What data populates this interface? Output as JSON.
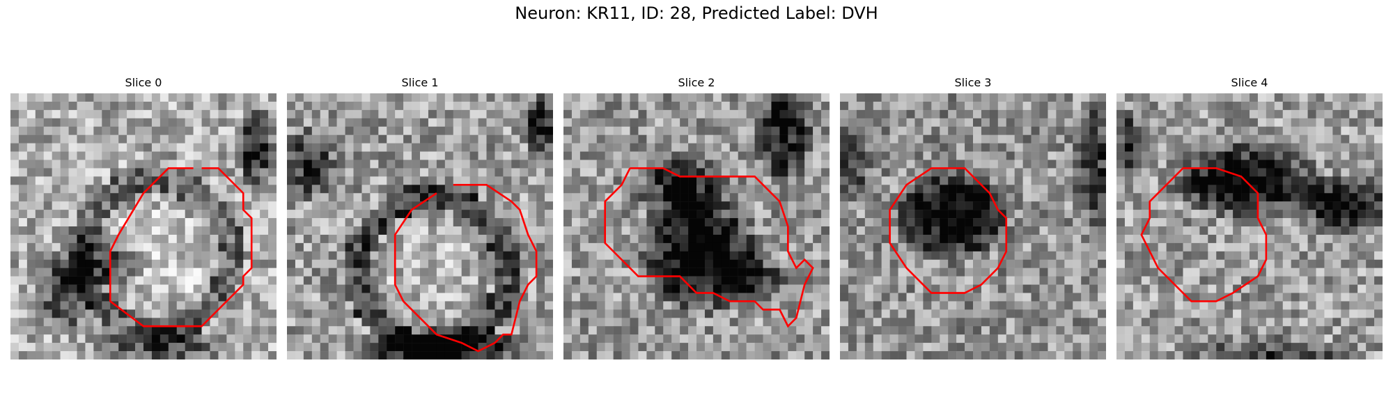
{
  "figure": {
    "title": "Neuron: KR11, ID: 28, Predicted Label: DVH"
  },
  "contour_color": "#ff0000",
  "slices": [
    {
      "title": "Slice 0",
      "contour": [
        [
          23,
          9
        ],
        [
          25,
          9
        ],
        [
          28,
          12
        ],
        [
          28,
          14
        ],
        [
          29,
          15
        ],
        [
          29,
          21
        ],
        [
          28,
          22
        ],
        [
          28,
          23
        ],
        [
          25,
          26
        ],
        [
          23,
          28
        ],
        [
          16,
          28
        ],
        [
          12,
          25
        ],
        [
          12,
          19
        ],
        [
          13,
          17
        ],
        [
          16,
          12
        ],
        [
          19,
          9
        ],
        [
          22,
          9
        ]
      ]
    },
    {
      "title": "Slice 1",
      "contour": [
        [
          20,
          11
        ],
        [
          24,
          11
        ],
        [
          27,
          13
        ],
        [
          28,
          14
        ],
        [
          29,
          17
        ],
        [
          30,
          19
        ],
        [
          30,
          22
        ],
        [
          29,
          23
        ],
        [
          28,
          25
        ],
        [
          27,
          29
        ],
        [
          26,
          29
        ],
        [
          25,
          30
        ],
        [
          23,
          31
        ],
        [
          21,
          30
        ],
        [
          18,
          29
        ],
        [
          16,
          27
        ],
        [
          14,
          25
        ],
        [
          13,
          23
        ],
        [
          13,
          17
        ],
        [
          15,
          14
        ],
        [
          18,
          12
        ]
      ]
    },
    {
      "title": "Slice 2",
      "contour": [
        [
          8,
          9
        ],
        [
          12,
          9
        ],
        [
          14,
          10
        ],
        [
          23,
          10
        ],
        [
          26,
          13
        ],
        [
          27,
          16
        ],
        [
          27,
          19
        ],
        [
          28,
          21
        ],
        [
          29,
          20
        ],
        [
          30,
          21
        ],
        [
          29,
          23
        ],
        [
          28,
          27
        ],
        [
          27,
          28
        ],
        [
          26,
          26
        ],
        [
          24,
          26
        ],
        [
          23,
          25
        ],
        [
          20,
          25
        ],
        [
          18,
          24
        ],
        [
          16,
          24
        ],
        [
          14,
          22
        ],
        [
          9,
          22
        ],
        [
          7,
          20
        ],
        [
          5,
          18
        ],
        [
          5,
          13
        ],
        [
          7,
          11
        ],
        [
          8,
          9
        ]
      ]
    },
    {
      "title": "Slice 3",
      "contour": [
        [
          13,
          9
        ],
        [
          15,
          9
        ],
        [
          17,
          11
        ],
        [
          18,
          12
        ],
        [
          19,
          14
        ],
        [
          20,
          15
        ],
        [
          20,
          19
        ],
        [
          19,
          21
        ],
        [
          17,
          23
        ],
        [
          15,
          24
        ],
        [
          11,
          24
        ],
        [
          8,
          21
        ],
        [
          6,
          18
        ],
        [
          6,
          14
        ],
        [
          8,
          11
        ],
        [
          11,
          9
        ],
        [
          13,
          9
        ]
      ]
    },
    {
      "title": "Slice 4",
      "contour": [
        [
          10,
          9
        ],
        [
          12,
          9
        ],
        [
          15,
          10
        ],
        [
          17,
          12
        ],
        [
          17,
          15
        ],
        [
          18,
          17
        ],
        [
          18,
          20
        ],
        [
          17,
          22
        ],
        [
          14,
          24
        ],
        [
          12,
          25
        ],
        [
          9,
          25
        ],
        [
          7,
          23
        ],
        [
          5,
          21
        ],
        [
          4,
          19
        ],
        [
          3,
          17
        ],
        [
          4,
          15
        ],
        [
          4,
          13
        ],
        [
          6,
          11
        ],
        [
          8,
          9
        ],
        [
          10,
          9
        ]
      ]
    }
  ]
}
